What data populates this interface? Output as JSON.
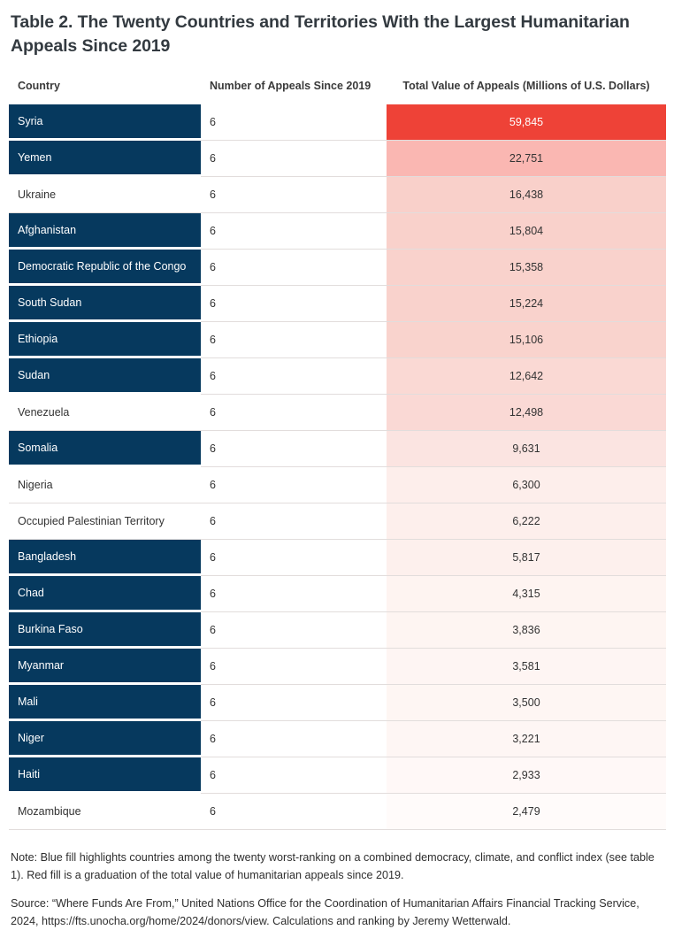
{
  "title": "Table 2. The Twenty Countries and Territories With the Largest Humanitarian Appeals Since 2019",
  "colors": {
    "highlight_blue": "#06395e",
    "top_red": "#ee4237",
    "row_separator": "#e2dddc",
    "title_text": "#333a40",
    "body_text": "#333333"
  },
  "table": {
    "columns": [
      "Country",
      "Number of Appeals Since 2019",
      "Total Value of Appeals (Millions of U.S. Dollars)"
    ],
    "rows": [
      {
        "country": "Syria",
        "appeals": "6",
        "value": "59,845",
        "blue": true,
        "fill": "#ee4237",
        "value_text": "#ffffff"
      },
      {
        "country": "Yemen",
        "appeals": "6",
        "value": "22,751",
        "blue": true,
        "fill": "#fab7b2",
        "value_text": "#333333"
      },
      {
        "country": "Ukraine",
        "appeals": "6",
        "value": "16,438",
        "blue": false,
        "fill": "#f9d0ca",
        "value_text": "#333333"
      },
      {
        "country": "Afghanistan",
        "appeals": "6",
        "value": "15,804",
        "blue": true,
        "fill": "#f9d1cb",
        "value_text": "#333333"
      },
      {
        "country": "Democratic Republic of the Congo",
        "appeals": "6",
        "value": "15,358",
        "blue": true,
        "fill": "#f9d2cc",
        "value_text": "#333333"
      },
      {
        "country": "South Sudan",
        "appeals": "6",
        "value": "15,224",
        "blue": true,
        "fill": "#f9d2cc",
        "value_text": "#333333"
      },
      {
        "country": "Ethiopia",
        "appeals": "6",
        "value": "15,106",
        "blue": true,
        "fill": "#f9d3cd",
        "value_text": "#333333"
      },
      {
        "country": "Sudan",
        "appeals": "6",
        "value": "12,642",
        "blue": true,
        "fill": "#fad9d4",
        "value_text": "#333333"
      },
      {
        "country": "Venezuela",
        "appeals": "6",
        "value": "12,498",
        "blue": false,
        "fill": "#fad9d5",
        "value_text": "#333333"
      },
      {
        "country": "Somalia",
        "appeals": "6",
        "value": "9,631",
        "blue": true,
        "fill": "#fbe4e1",
        "value_text": "#333333"
      },
      {
        "country": "Nigeria",
        "appeals": "6",
        "value": "6,300",
        "blue": false,
        "fill": "#fdeeeb",
        "value_text": "#333333"
      },
      {
        "country": "Occupied Palestinian Territory",
        "appeals": "6",
        "value": "6,222",
        "blue": false,
        "fill": "#fdefec",
        "value_text": "#333333"
      },
      {
        "country": "Bangladesh",
        "appeals": "6",
        "value": "5,817",
        "blue": true,
        "fill": "#fdf0ed",
        "value_text": "#333333"
      },
      {
        "country": "Chad",
        "appeals": "6",
        "value": "4,315",
        "blue": true,
        "fill": "#fef4f1",
        "value_text": "#333333"
      },
      {
        "country": "Burkina Faso",
        "appeals": "6",
        "value": "3,836",
        "blue": true,
        "fill": "#fef5f2",
        "value_text": "#333333"
      },
      {
        "country": "Myanmar",
        "appeals": "6",
        "value": "3,581",
        "blue": true,
        "fill": "#fef5f3",
        "value_text": "#333333"
      },
      {
        "country": "Mali",
        "appeals": "6",
        "value": "3,500",
        "blue": true,
        "fill": "#fef6f3",
        "value_text": "#333333"
      },
      {
        "country": "Niger",
        "appeals": "6",
        "value": "3,221",
        "blue": true,
        "fill": "#fef6f4",
        "value_text": "#333333"
      },
      {
        "country": "Haiti",
        "appeals": "6",
        "value": "2,933",
        "blue": true,
        "fill": "#fff8f7",
        "value_text": "#333333"
      },
      {
        "country": "Mozambique",
        "appeals": "6",
        "value": "2,479",
        "blue": false,
        "fill": "#fffbfa",
        "value_text": "#333333"
      }
    ]
  },
  "note": "Note: Blue fill highlights countries among the twenty worst-ranking on a combined democracy, climate, and conflict index (see table 1). Red fill is a graduation of the total value of humanitarian appeals since 2019.",
  "source": "Source: “Where Funds Are From,” United Nations Office for the Coordination of Humanitarian Affairs Financial Tracking Service, 2024, https://fts.unocha.org/home/2024/donors/view. Calculations and ranking by Jeremy Wetterwald.",
  "chart_data": {
    "type": "table",
    "title": "Table 2. The Twenty Countries and Territories With the Largest Humanitarian Appeals Since 2019",
    "columns": [
      "Country",
      "Number of Appeals Since 2019",
      "Total Value of Appeals (Millions of U.S. Dollars)"
    ],
    "categories": [
      "Syria",
      "Yemen",
      "Ukraine",
      "Afghanistan",
      "Democratic Republic of the Congo",
      "South Sudan",
      "Ethiopia",
      "Sudan",
      "Venezuela",
      "Somalia",
      "Nigeria",
      "Occupied Palestinian Territory",
      "Bangladesh",
      "Chad",
      "Burkina Faso",
      "Myanmar",
      "Mali",
      "Niger",
      "Haiti",
      "Mozambique"
    ],
    "series": [
      {
        "name": "Number of Appeals Since 2019",
        "values": [
          6,
          6,
          6,
          6,
          6,
          6,
          6,
          6,
          6,
          6,
          6,
          6,
          6,
          6,
          6,
          6,
          6,
          6,
          6,
          6
        ]
      },
      {
        "name": "Total Value of Appeals (Millions of U.S. Dollars)",
        "values": [
          59845,
          22751,
          16438,
          15804,
          15358,
          15224,
          15106,
          12642,
          12498,
          9631,
          6300,
          6222,
          5817,
          4315,
          3836,
          3581,
          3500,
          3221,
          2933,
          2479
        ]
      }
    ],
    "blue_highlighted": [
      "Syria",
      "Yemen",
      "Afghanistan",
      "Democratic Republic of the Congo",
      "South Sudan",
      "Ethiopia",
      "Sudan",
      "Somalia",
      "Bangladesh",
      "Chad",
      "Burkina Faso",
      "Myanmar",
      "Mali",
      "Niger",
      "Haiti"
    ]
  }
}
